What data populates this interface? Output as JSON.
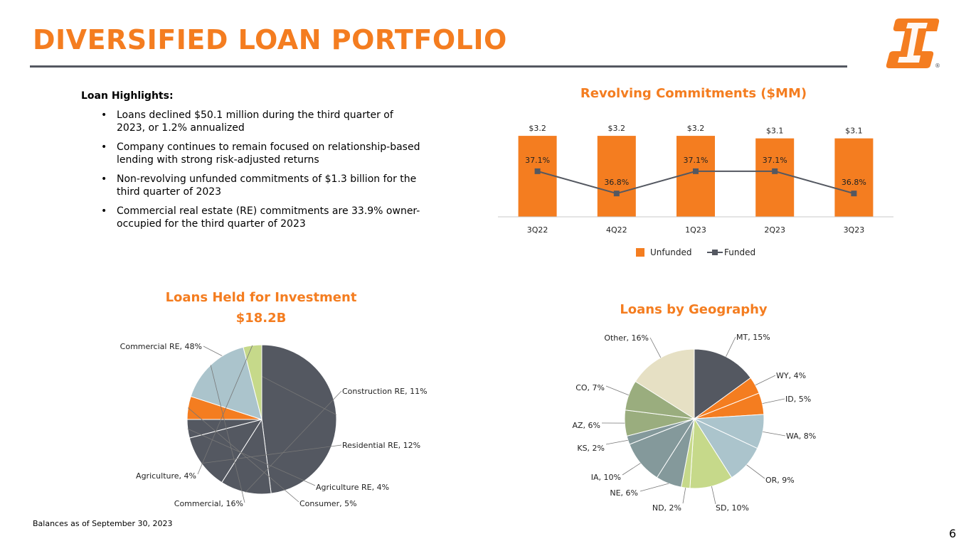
{
  "page": {
    "title": "DIVERSIFIED LOAN PORTFOLIO",
    "footnote": "Balances as of September 30, 2023",
    "page_number": "6"
  },
  "logo": {
    "name": "first-interstate-logo",
    "mark": "®",
    "color": "#F47D20"
  },
  "highlights": {
    "heading": "Loan Highlights:",
    "bullet": "•",
    "items": [
      "Loans declined $50.1 million during the third quarter of 2023, or 1.2% annualized",
      "Company continues to remain focused on relationship-based lending with strong risk-adjusted returns",
      "Non-revolving unfunded commitments of $1.3 billion for the third quarter of 2023",
      "Commercial real estate (RE) commitments are 33.9% owner-occupied for the third quarter of 2023"
    ]
  },
  "colors": {
    "accent": "#F47D20",
    "dark": "#545861"
  },
  "chart_data": [
    {
      "type": "bar",
      "title": "Revolving Commitments ($MM)",
      "categories": [
        "3Q22",
        "4Q22",
        "1Q23",
        "2Q23",
        "3Q23"
      ],
      "series": [
        {
          "name": "Unfunded",
          "kind": "bar",
          "color": "#F47D20",
          "values": [
            3.2,
            3.2,
            3.2,
            3.1,
            3.1
          ],
          "labels": [
            "$3.2",
            "$3.2",
            "$3.2",
            "$3.1",
            "$3.1"
          ]
        },
        {
          "name": "Funded",
          "kind": "line",
          "color": "#545861",
          "values": [
            37.1,
            36.8,
            37.1,
            37.1,
            36.8
          ],
          "labels": [
            "37.1%",
            "36.8%",
            "37.1%",
            "37.1%",
            "36.8%"
          ]
        }
      ],
      "legend": "bottom",
      "grid": false
    },
    {
      "type": "pie",
      "title": "Loans Held for Investment",
      "subtitle": "$18.2B",
      "slices": [
        {
          "label": "Commercial RE, 48%",
          "value": 48,
          "color": "#545861"
        },
        {
          "label": "Construction RE, 11%",
          "value": 11,
          "color": "#545861"
        },
        {
          "label": "Residential RE, 12%",
          "value": 12,
          "color": "#545861"
        },
        {
          "label": "Agriculture RE, 4%",
          "value": 4,
          "color": "#545861"
        },
        {
          "label": "Consumer, 5%",
          "value": 5,
          "color": "#F47D20"
        },
        {
          "label": "Commercial, 16%",
          "value": 16,
          "color": "#ABC4CC"
        },
        {
          "label": "Agriculture, 4%",
          "value": 4,
          "color": "#C6D98A"
        }
      ]
    },
    {
      "type": "pie",
      "title": "Loans by Geography",
      "slices": [
        {
          "label": "MT, 15%",
          "value": 15,
          "color": "#545861"
        },
        {
          "label": "WY, 4%",
          "value": 4,
          "color": "#F47D20"
        },
        {
          "label": "ID, 5%",
          "value": 5,
          "color": "#F47D20"
        },
        {
          "label": "WA, 8%",
          "value": 8,
          "color": "#ABC4CC"
        },
        {
          "label": "OR, 9%",
          "value": 9,
          "color": "#ABC4CC"
        },
        {
          "label": "SD, 10%",
          "value": 10,
          "color": "#C6D98A"
        },
        {
          "label": "ND, 2%",
          "value": 2,
          "color": "#C6D98A"
        },
        {
          "label": "NE, 6%",
          "value": 6,
          "color": "#84999B"
        },
        {
          "label": "IA, 10%",
          "value": 10,
          "color": "#84999B"
        },
        {
          "label": "KS, 2%",
          "value": 2,
          "color": "#84999B"
        },
        {
          "label": "AZ, 6%",
          "value": 6,
          "color": "#9AAD7E"
        },
        {
          "label": "CO, 7%",
          "value": 7,
          "color": "#9AAD7E"
        },
        {
          "label": "Other, 16%",
          "value": 16,
          "color": "#E6E0C4"
        }
      ]
    }
  ]
}
